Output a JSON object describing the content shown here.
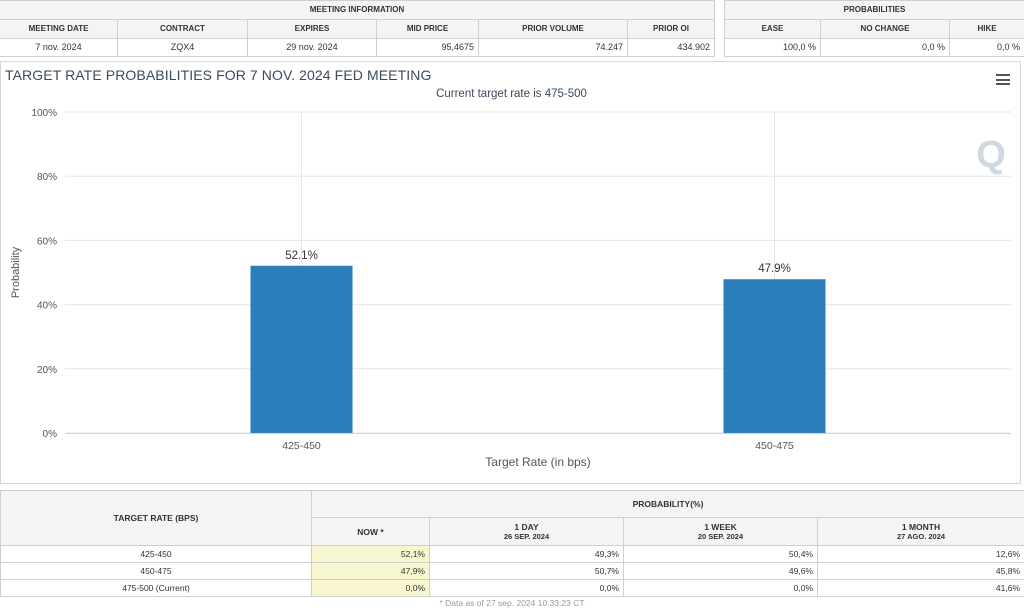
{
  "meeting_info": {
    "caption": "MEETING INFORMATION",
    "headers": [
      "MEETING DATE",
      "CONTRACT",
      "EXPIRES",
      "MID PRICE",
      "PRIOR VOLUME",
      "PRIOR OI"
    ],
    "row": {
      "meeting_date": "7 nov. 2024",
      "contract": "ZQX4",
      "expires": "29 nov. 2024",
      "mid_price": "95,4675",
      "prior_volume": "74.247",
      "prior_oi": "434.902"
    }
  },
  "probabilities": {
    "caption": "PROBABILITIES",
    "headers": [
      "EASE",
      "NO CHANGE",
      "HIKE"
    ],
    "row": {
      "ease": "100,0 %",
      "no_change": "0,0 %",
      "hike": "0,0 %"
    }
  },
  "chart": {
    "title": "TARGET RATE PROBABILITIES FOR 7 NOV. 2024 FED MEETING",
    "subtitle": "Current target rate is 475-500",
    "watermark": "Q",
    "menu_icon": "hamburger-menu-icon"
  },
  "chart_data": {
    "type": "bar",
    "categories": [
      "425-450",
      "450-475"
    ],
    "values": [
      52.1,
      47.9
    ],
    "data_labels": [
      "52.1%",
      "47.9%"
    ],
    "xlabel": "Target Rate (in bps)",
    "ylabel": "Probability",
    "ylim": [
      0,
      100
    ],
    "yticks": [
      "0%",
      "20%",
      "40%",
      "60%",
      "80%",
      "100%"
    ],
    "bar_color": "#2a7fba",
    "grid": true
  },
  "bottom_table": {
    "rate_header": "TARGET RATE (BPS)",
    "prob_header": "PROBABILITY(%)",
    "columns": [
      {
        "label": "NOW *",
        "sub": ""
      },
      {
        "label": "1 DAY",
        "sub": "26 SEP. 2024"
      },
      {
        "label": "1 WEEK",
        "sub": "20 SEP. 2024"
      },
      {
        "label": "1 MONTH",
        "sub": "27 AGO. 2024"
      }
    ],
    "rows": [
      {
        "rate": "425-450",
        "now": "52,1%",
        "day": "49,3%",
        "week": "50,4%",
        "month": "12,6%"
      },
      {
        "rate": "450-475",
        "now": "47,9%",
        "day": "50,7%",
        "week": "49,6%",
        "month": "45,8%"
      },
      {
        "rate": "475-500 (Current)",
        "now": "0,0%",
        "day": "0,0%",
        "week": "0,0%",
        "month": "41,6%"
      }
    ],
    "footnote": "* Data as of 27 sep. 2024 10:33:23 CT"
  }
}
